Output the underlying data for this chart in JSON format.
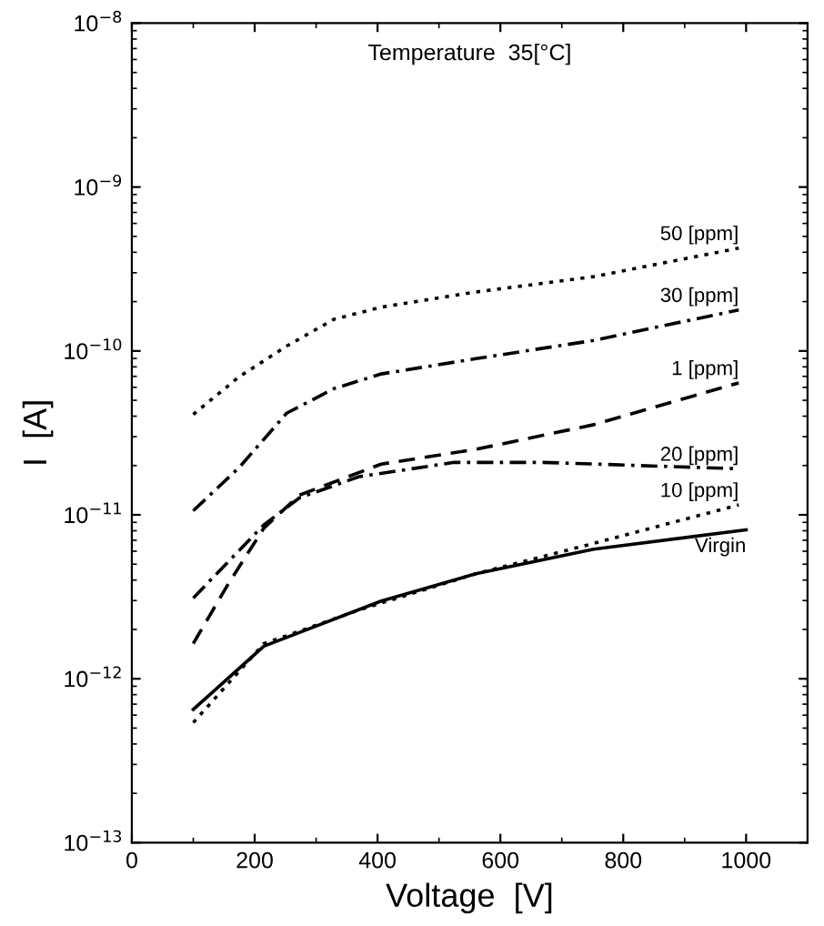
{
  "chart_data": {
    "type": "line",
    "title": "Temperature  35[°C]",
    "xlabel": "Voltage  [V]",
    "ylabel": "I  [A]",
    "log": "y",
    "grid": false,
    "legend": false,
    "xlim": [
      0,
      1100
    ],
    "xticks": [
      0,
      200,
      400,
      600,
      800,
      1000
    ],
    "ylim": [
      1e-13,
      1e-08
    ],
    "yticks": [
      {
        "value": 1e-13,
        "label": "10$^{−13}$"
      },
      {
        "value": 1e-12,
        "label": "10$^{−12}$"
      },
      {
        "value": 1e-11,
        "label": "10$^{−11}$"
      },
      {
        "value": 1e-10,
        "label": "10$^{−10}$"
      },
      {
        "value": 1e-09,
        "label": "10$^{−9}$"
      },
      {
        "value": 1e-08,
        "label": "10$^{−8}$"
      }
    ],
    "series": [
      {
        "name": "50 [ppm]",
        "color": "#000000",
        "line_style": "dotted",
        "x": [
          100,
          175,
          252,
          329,
          406,
          560,
          752,
          988
        ],
        "values": [
          4.1e-11,
          6.97e-11,
          1.07e-10,
          1.56e-10,
          1.85e-10,
          2.29e-10,
          2.84e-10,
          4.24e-10
        ]
      },
      {
        "name": "30 [ppm]",
        "color": "#000000",
        "line_style": "dashdot",
        "x": [
          100,
          175,
          252,
          329,
          406,
          560,
          752,
          988
        ],
        "values": [
          1.06e-11,
          1.95e-11,
          4.17e-11,
          5.89e-11,
          7.24e-11,
          8.97e-11,
          1.16e-10,
          1.78e-10
        ]
      },
      {
        "name": "1 [ppm]",
        "color": "#000000",
        "line_style": "dashed",
        "x": [
          100,
          158,
          215,
          273,
          406,
          560,
          752,
          988
        ],
        "values": [
          1.64e-12,
          3.85e-12,
          8.3e-12,
          1.32e-11,
          2.04e-11,
          2.51e-11,
          3.55e-11,
          6.38e-11
        ]
      },
      {
        "name": "20 [ppm]",
        "color": "#000000",
        "line_style": "dashdot",
        "x": [
          100,
          215,
          273,
          370,
          525,
          670,
          988
        ],
        "values": [
          3.11e-12,
          8.7e-12,
          1.27e-11,
          1.71e-11,
          2.09e-11,
          2.09e-11,
          1.91e-11
        ]
      },
      {
        "name": "10 [ppm]",
        "color": "#000000",
        "line_style": "dotted",
        "x": [
          100,
          215,
          273,
          370,
          560,
          752,
          988
        ],
        "values": [
          5.4e-13,
          1.64e-12,
          1.95e-12,
          2.63e-12,
          4.37e-12,
          6.7e-12,
          1.15e-11
        ]
      },
      {
        "name": "Virgin",
        "color": "#000000",
        "line_style": "solid",
        "x": [
          100,
          215,
          292,
          406,
          560,
          752,
          1000
        ],
        "values": [
          6.5e-13,
          1.58e-12,
          2.04e-12,
          2.98e-12,
          4.37e-12,
          6.17e-12,
          8.1e-12
        ]
      }
    ]
  }
}
